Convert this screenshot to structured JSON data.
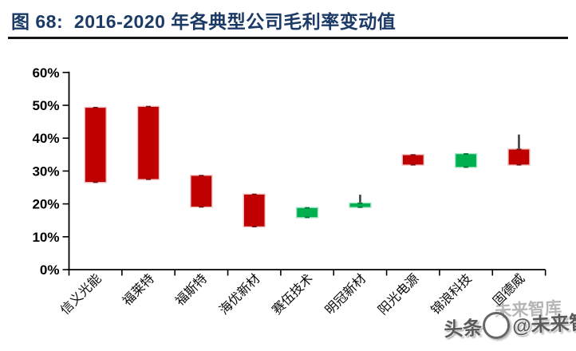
{
  "title": {
    "text": "图 68:  2016-2020 年各典型公司毛利率变动值"
  },
  "colors": {
    "title": "#1b3a66",
    "down_red": "#c00000",
    "up_green": "#00b050",
    "red_edge": "#efc3c3",
    "green_edge": "#aee6cb",
    "whisker": "#3f3f3f",
    "axis": "#000000"
  },
  "watermark": {
    "left": "头条",
    "right": "@未来智库",
    "ghost": "未来智库"
  },
  "chart_data": {
    "type": "bar",
    "subtype": "floating range bars (candlestick style, red = margin decline, green = margin rise)",
    "title": "2016-2020 年各典型公司毛利率变动值",
    "xlabel": "",
    "ylabel": "",
    "ylim": [
      0,
      60
    ],
    "ytick_step": 10,
    "ytick_labels": [
      "0%",
      "10%",
      "20%",
      "30%",
      "40%",
      "50%",
      "60%"
    ],
    "grid": false,
    "legend": null,
    "categories": [
      "信义光能",
      "福莱特",
      "福斯特",
      "海优新材",
      "赛伍技术",
      "明冠新材",
      "阳光电源",
      "锦浪科技",
      "固德威"
    ],
    "bars": [
      {
        "label": "信义光能",
        "low": 26.5,
        "high": 49.4,
        "direction": "down"
      },
      {
        "label": "福莱特",
        "low": 27.4,
        "high": 49.7,
        "direction": "down"
      },
      {
        "label": "福斯特",
        "low": 19.0,
        "high": 28.7,
        "direction": "down"
      },
      {
        "label": "海优新材",
        "low": 13.0,
        "high": 23.0,
        "direction": "down"
      },
      {
        "label": "赛伍技术",
        "low": 15.8,
        "high": 18.9,
        "direction": "up"
      },
      {
        "label": "明冠新材",
        "low": 18.9,
        "high": 20.3,
        "whisker_high": 22.8,
        "direction": "up"
      },
      {
        "label": "阳光电源",
        "low": 31.8,
        "high": 35.0,
        "direction": "down"
      },
      {
        "label": "锦浪科技",
        "low": 31.1,
        "high": 35.3,
        "direction": "up"
      },
      {
        "label": "固德威",
        "low": 31.8,
        "high": 36.7,
        "whisker_high": 41.1,
        "direction": "down"
      }
    ]
  }
}
